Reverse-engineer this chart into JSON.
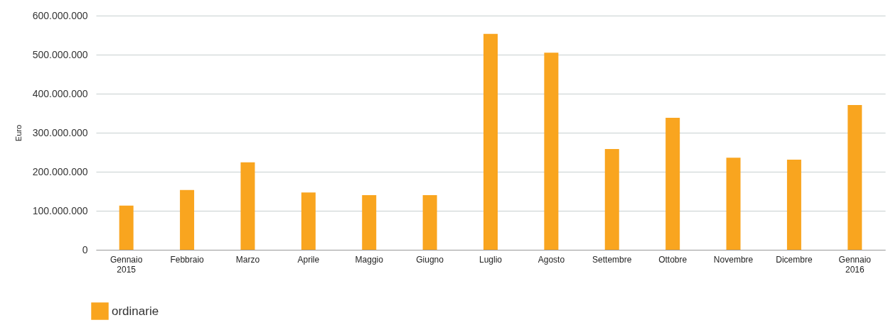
{
  "chart_data": {
    "type": "bar",
    "ylabel": "Euro",
    "categories": [
      "Gennaio 2015",
      "Febbraio",
      "Marzo",
      "Aprile",
      "Maggio",
      "Giugno",
      "Luglio",
      "Agosto",
      "Settembre",
      "Ottobre",
      "Novembre",
      "Dicembre",
      "Gennaio 2016"
    ],
    "series": [
      {
        "name": "ordinarie",
        "color": "#f9a51f",
        "values": [
          113000000,
          153000000,
          224000000,
          147000000,
          140000000,
          140000000,
          553000000,
          505000000,
          258000000,
          338000000,
          236000000,
          231000000,
          371000000
        ]
      }
    ],
    "ylim": [
      0,
      600000000
    ],
    "yticks": [
      0,
      {
        "value": 100000000,
        "label": "100.000.000"
      },
      {
        "value": 200000000,
        "label": "200.000.000"
      },
      {
        "value": 300000000,
        "label": "300.000.000"
      },
      {
        "value": 400000000,
        "label": "400.000.000"
      },
      {
        "value": 500000000,
        "label": "500.000.000"
      },
      {
        "value": 600000000,
        "label": "600.000.000"
      }
    ],
    "grid": "y",
    "legend": "bottom left"
  }
}
